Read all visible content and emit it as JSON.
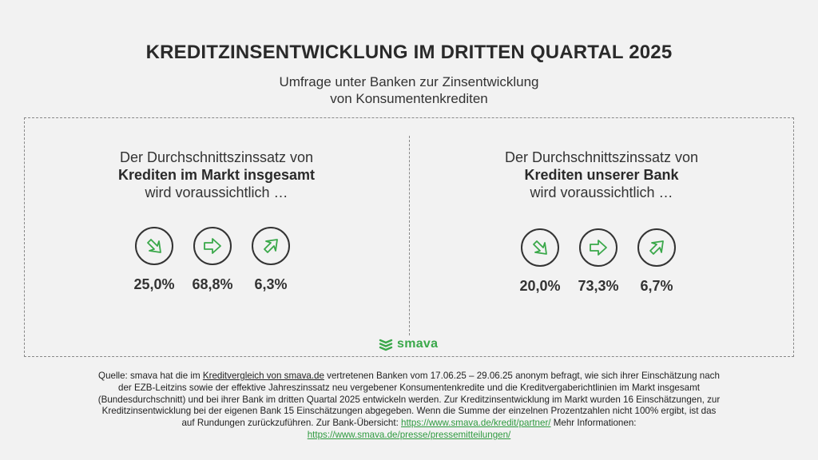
{
  "title": "KREDITZINSENTWICKLUNG IM DRITTEN QUARTAL 2025",
  "subtitle": {
    "line1": "Umfrage unter Banken zur Zinsentwicklung",
    "line2": "von Konsumentenkrediten"
  },
  "panels": [
    {
      "line1": "Der Durchschnittszinssatz von",
      "line2_bold": "Krediten im Markt insgesamt",
      "line3": "wird voraussichtlich …",
      "values": {
        "down": "25,0%",
        "flat": "68,8%",
        "up": "6,3%"
      }
    },
    {
      "line1": "Der Durchschnittszinssatz von",
      "line2_bold": "Krediten unserer Bank",
      "line3": "wird voraussichtlich …",
      "values": {
        "down": "20,0%",
        "flat": "73,3%",
        "up": "6,7%"
      }
    }
  ],
  "icons": {
    "down": "arrow-down-right-icon",
    "flat": "arrow-right-icon",
    "up": "arrow-up-right-icon"
  },
  "colors": {
    "accent": "#3aa84a",
    "background": "#f2f2f2",
    "text": "#333333",
    "link": "#2e9a3f"
  },
  "logo": {
    "text": "smava"
  },
  "footer": {
    "part1": "Quelle: smava hat die im ",
    "link1": "Kreditvergleich von smava.de",
    "part2": " vertretenen Banken vom 17.06.25 – 29.06.25 anonym befragt, wie sich ihrer Einschätzung nach der EZB-Leitzins sowie der effektive Jahreszinssatz neu vergebener Konsumentenkredite und die Kreditvergaberichtlinien im Markt insgesamt (Bundesdurchschnitt) und bei ihrer Bank im dritten Quartal 2025 entwickeln werden. Zur Kreditzinsentwicklung im Markt wurden 16 Einschätzungen, zur Kreditzinsentwicklung bei der eigenen Bank 15 Einschätzungen abgegeben. Wenn die Summe der einzelnen Prozentzahlen nicht 100% ergibt, ist das auf Rundungen zurückzuführen. Zur Bank-Übersicht: ",
    "link2": "https://www.smava.de/kredit/partner/",
    "part3": " Mehr Informationen: ",
    "link3": "https://www.smava.de/presse/pressemitteilungen/"
  }
}
